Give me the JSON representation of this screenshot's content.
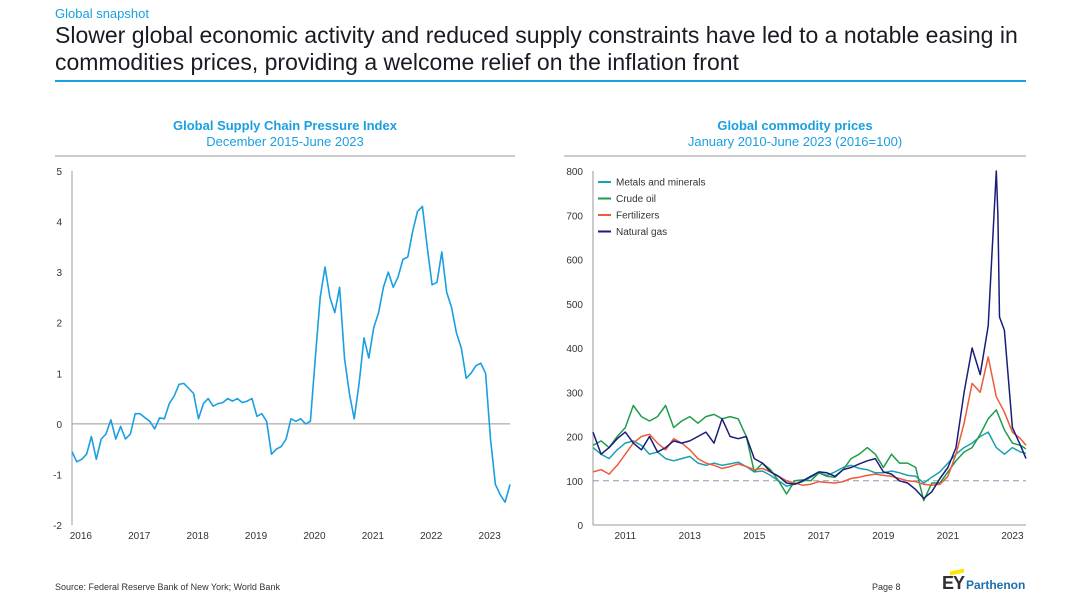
{
  "header": {
    "kicker": "Global snapshot",
    "headline": "Slower global economic activity and reduced supply constraints have led to a notable easing in commodities prices, providing a welcome relief on the inflation front"
  },
  "footer": {
    "source": "Source: Federal Reserve Bank of New York; World Bank",
    "page": "Page 8",
    "logo_text": "EY",
    "logo_sub": "Parthenon"
  },
  "colors": {
    "accent": "#1a9fe0",
    "gscpi_line": "#1a9fe0",
    "metals": "#1aa0b0",
    "crude": "#1e9c4a",
    "fertilizers": "#ee5a3a",
    "natgas": "#1b1d7a"
  },
  "chart_data": [
    {
      "type": "line",
      "title": "Global Supply Chain Pressure Index",
      "subtitle": "December 2015-June 2023",
      "ylim": [
        -2,
        5
      ],
      "yticks": [
        -2,
        -1,
        0,
        1,
        2,
        3,
        4,
        5
      ],
      "ytick_labels": [
        "-2",
        "-1",
        "0",
        "1",
        "2",
        "3",
        "4",
        "5"
      ],
      "xlim": [
        2015.917,
        2023.417
      ],
      "xticks": [
        2016,
        2017,
        2018,
        2019,
        2020,
        2021,
        2022,
        2023
      ],
      "xtick_labels": [
        "2016",
        "2017",
        "2018",
        "2019",
        "2020",
        "2021",
        "2022",
        "2023"
      ],
      "series": [
        {
          "x": [
            2015.917,
            2016.0,
            2016.083,
            2016.167,
            2016.25,
            2016.333,
            2016.417,
            2016.5,
            2016.583,
            2016.667,
            2016.75,
            2016.833,
            2016.917,
            2017.0,
            2017.083,
            2017.167,
            2017.25,
            2017.333,
            2017.417,
            2017.5,
            2017.583,
            2017.667,
            2017.75,
            2017.833,
            2017.917,
            2018.0,
            2018.083,
            2018.167,
            2018.25,
            2018.333,
            2018.417,
            2018.5,
            2018.583,
            2018.667,
            2018.75,
            2018.833,
            2018.917,
            2019.0,
            2019.083,
            2019.167,
            2019.25,
            2019.333,
            2019.417,
            2019.5,
            2019.583,
            2019.667,
            2019.75,
            2019.833,
            2019.917,
            2020.0,
            2020.083,
            2020.167,
            2020.25,
            2020.333,
            2020.417,
            2020.5,
            2020.583,
            2020.667,
            2020.75,
            2020.833,
            2020.917,
            2021.0,
            2021.083,
            2021.167,
            2021.25,
            2021.333,
            2021.417,
            2021.5,
            2021.583,
            2021.667,
            2021.75,
            2021.833,
            2021.917,
            2022.0,
            2022.083,
            2022.167,
            2022.25,
            2022.333,
            2022.417,
            2022.5,
            2022.583,
            2022.667,
            2022.75,
            2022.833,
            2022.917,
            2023.0,
            2023.083,
            2023.167,
            2023.25,
            2023.333,
            2023.417
          ],
          "y": [
            -0.55,
            -0.75,
            -0.7,
            -0.6,
            -0.25,
            -0.7,
            -0.3,
            -0.2,
            0.08,
            -0.3,
            -0.05,
            -0.3,
            -0.2,
            0.2,
            0.2,
            0.12,
            0.05,
            -0.1,
            0.12,
            0.1,
            0.4,
            0.55,
            0.78,
            0.8,
            0.7,
            0.6,
            0.1,
            0.4,
            0.5,
            0.35,
            0.4,
            0.42,
            0.5,
            0.45,
            0.5,
            0.42,
            0.45,
            0.5,
            0.15,
            0.2,
            0.05,
            -0.6,
            -0.5,
            -0.45,
            -0.3,
            0.1,
            0.05,
            0.1,
            0.0,
            0.05,
            1.3,
            2.5,
            3.1,
            2.5,
            2.2,
            2.7,
            1.3,
            0.6,
            0.1,
            0.8,
            1.7,
            1.3,
            1.9,
            2.2,
            2.7,
            3.0,
            2.7,
            2.9,
            3.25,
            3.3,
            3.8,
            4.2,
            4.3,
            3.5,
            2.75,
            2.8,
            3.4,
            2.6,
            2.3,
            1.8,
            1.5,
            0.9,
            1.0,
            1.15,
            1.2,
            1.0,
            -0.3,
            -1.2,
            -1.4,
            -1.55,
            -1.2
          ]
        }
      ]
    },
    {
      "type": "line",
      "title": "Global commodity prices",
      "subtitle": "January 2010-June 2023 (2016=100)",
      "ylim": [
        0,
        800
      ],
      "yticks": [
        0,
        100,
        200,
        300,
        400,
        500,
        600,
        700,
        800
      ],
      "ytick_labels": [
        "0",
        "100",
        "200",
        "300",
        "400",
        "500",
        "600",
        "700",
        "800"
      ],
      "xlim": [
        2010,
        2023.42
      ],
      "xticks": [
        2011,
        2013,
        2015,
        2017,
        2019,
        2021,
        2023
      ],
      "xtick_labels": [
        "2011",
        "2013",
        "2015",
        "2017",
        "2019",
        "2021",
        "2023"
      ],
      "reference_line": 100,
      "legend_position": "top-left",
      "series": [
        {
          "name": "Metals and minerals",
          "x": [
            2010.0,
            2010.25,
            2010.5,
            2010.75,
            2011.0,
            2011.25,
            2011.5,
            2011.75,
            2012.0,
            2012.25,
            2012.5,
            2012.75,
            2013.0,
            2013.25,
            2013.5,
            2013.75,
            2014.0,
            2014.25,
            2014.5,
            2014.75,
            2015.0,
            2015.25,
            2015.5,
            2015.75,
            2016.0,
            2016.25,
            2016.5,
            2016.75,
            2017.0,
            2017.25,
            2017.5,
            2017.75,
            2018.0,
            2018.25,
            2018.5,
            2018.75,
            2019.0,
            2019.25,
            2019.5,
            2019.75,
            2020.0,
            2020.25,
            2020.5,
            2020.75,
            2021.0,
            2021.25,
            2021.5,
            2021.75,
            2022.0,
            2022.25,
            2022.5,
            2022.75,
            2023.0,
            2023.25,
            2023.42
          ],
          "y": [
            175,
            160,
            150,
            170,
            185,
            190,
            180,
            160,
            165,
            150,
            145,
            150,
            155,
            140,
            135,
            140,
            135,
            138,
            142,
            132,
            120,
            122,
            112,
            100,
            88,
            92,
            98,
            108,
            118,
            112,
            120,
            130,
            135,
            128,
            125,
            118,
            118,
            122,
            118,
            112,
            110,
            95,
            108,
            120,
            140,
            160,
            175,
            185,
            200,
            210,
            175,
            160,
            175,
            165,
            162
          ]
        },
        {
          "name": "Crude oil",
          "x": [
            2010.0,
            2010.25,
            2010.5,
            2010.75,
            2011.0,
            2011.25,
            2011.5,
            2011.75,
            2012.0,
            2012.25,
            2012.5,
            2012.75,
            2013.0,
            2013.25,
            2013.5,
            2013.75,
            2014.0,
            2014.25,
            2014.5,
            2014.75,
            2015.0,
            2015.25,
            2015.5,
            2015.75,
            2016.0,
            2016.25,
            2016.5,
            2016.75,
            2017.0,
            2017.25,
            2017.5,
            2017.75,
            2018.0,
            2018.25,
            2018.5,
            2018.75,
            2019.0,
            2019.25,
            2019.5,
            2019.75,
            2020.0,
            2020.25,
            2020.5,
            2020.75,
            2021.0,
            2021.25,
            2021.5,
            2021.75,
            2022.0,
            2022.25,
            2022.5,
            2022.75,
            2023.0,
            2023.25,
            2023.42
          ],
          "y": [
            180,
            190,
            175,
            200,
            220,
            270,
            245,
            235,
            245,
            270,
            220,
            235,
            245,
            230,
            245,
            250,
            240,
            245,
            240,
            200,
            120,
            140,
            125,
            100,
            70,
            100,
            102,
            100,
            118,
            110,
            108,
            125,
            150,
            160,
            175,
            160,
            130,
            160,
            140,
            140,
            130,
            55,
            95,
            95,
            120,
            145,
            165,
            175,
            205,
            240,
            260,
            215,
            185,
            180,
            172
          ]
        },
        {
          "name": "Fertilizers",
          "x": [
            2010.0,
            2010.25,
            2010.5,
            2010.75,
            2011.0,
            2011.25,
            2011.5,
            2011.75,
            2012.0,
            2012.25,
            2012.5,
            2012.75,
            2013.0,
            2013.25,
            2013.5,
            2013.75,
            2014.0,
            2014.25,
            2014.5,
            2014.75,
            2015.0,
            2015.25,
            2015.5,
            2015.75,
            2016.0,
            2016.25,
            2016.5,
            2016.75,
            2017.0,
            2017.25,
            2017.5,
            2017.75,
            2018.0,
            2018.25,
            2018.5,
            2018.75,
            2019.0,
            2019.25,
            2019.5,
            2019.75,
            2020.0,
            2020.25,
            2020.5,
            2020.75,
            2021.0,
            2021.25,
            2021.5,
            2021.75,
            2022.0,
            2022.25,
            2022.5,
            2022.75,
            2023.0,
            2023.25,
            2023.42
          ],
          "y": [
            120,
            125,
            115,
            135,
            160,
            185,
            200,
            205,
            185,
            170,
            195,
            185,
            170,
            150,
            140,
            135,
            128,
            132,
            138,
            132,
            125,
            128,
            120,
            110,
            100,
            95,
            90,
            92,
            98,
            96,
            95,
            98,
            105,
            108,
            112,
            115,
            112,
            110,
            105,
            100,
            98,
            92,
            90,
            92,
            110,
            160,
            230,
            320,
            300,
            380,
            290,
            255,
            210,
            195,
            180
          ]
        },
        {
          "name": "Natural gas",
          "x": [
            2010.0,
            2010.25,
            2010.5,
            2010.75,
            2011.0,
            2011.25,
            2011.5,
            2011.75,
            2012.0,
            2012.25,
            2012.5,
            2012.75,
            2013.0,
            2013.25,
            2013.5,
            2013.75,
            2014.0,
            2014.25,
            2014.5,
            2014.75,
            2015.0,
            2015.25,
            2015.5,
            2015.75,
            2016.0,
            2016.25,
            2016.5,
            2016.75,
            2017.0,
            2017.25,
            2017.5,
            2017.75,
            2018.0,
            2018.25,
            2018.5,
            2018.75,
            2019.0,
            2019.25,
            2019.5,
            2019.75,
            2020.0,
            2020.25,
            2020.5,
            2020.75,
            2021.0,
            2021.25,
            2021.5,
            2021.75,
            2022.0,
            2022.25,
            2022.5,
            2022.55,
            2022.6,
            2022.75,
            2023.0,
            2023.25,
            2023.42
          ],
          "y": [
            210,
            160,
            175,
            195,
            210,
            185,
            170,
            200,
            165,
            175,
            190,
            185,
            190,
            200,
            210,
            185,
            240,
            200,
            195,
            200,
            150,
            140,
            120,
            110,
            95,
            92,
            100,
            110,
            120,
            118,
            110,
            125,
            130,
            138,
            145,
            150,
            120,
            115,
            100,
            95,
            80,
            60,
            75,
            105,
            130,
            175,
            300,
            400,
            340,
            450,
            800,
            700,
            470,
            440,
            220,
            180,
            150
          ]
        }
      ]
    }
  ]
}
